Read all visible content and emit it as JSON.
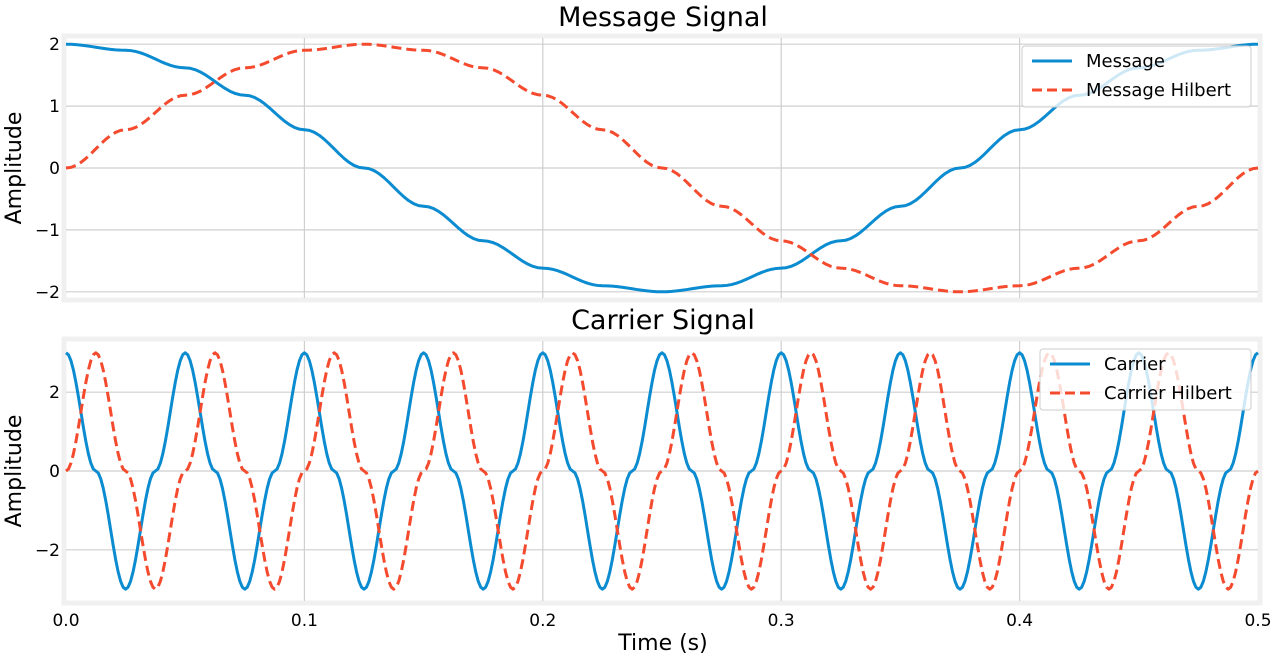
{
  "chart_data": [
    {
      "type": "line",
      "title": "Message Signal",
      "xlabel": "",
      "ylabel": "Amplitude",
      "xlim": [
        0,
        0.5
      ],
      "ylim": [
        -2.1,
        2.1
      ],
      "xticks": [
        0.1,
        0.2,
        0.3,
        0.4
      ],
      "yticks": [
        -2,
        -1,
        0,
        1,
        2
      ],
      "ytick_labels": [
        "−2",
        "−1",
        "0",
        "1",
        "2"
      ],
      "grid": true,
      "legend_position": "top-right",
      "series": [
        {
          "name": "Message",
          "style": "solid",
          "color": "#0b8bd0",
          "x": [
            0,
            0.025,
            0.05,
            0.075,
            0.1,
            0.125,
            0.15,
            0.175,
            0.2,
            0.225,
            0.25,
            0.275,
            0.3,
            0.325,
            0.35,
            0.375,
            0.4,
            0.425,
            0.45,
            0.475,
            0.5
          ],
          "y": [
            2.0,
            1.902,
            1.618,
            1.176,
            0.618,
            0.0,
            -0.618,
            -1.176,
            -1.618,
            -1.902,
            -2.0,
            -1.902,
            -1.618,
            -1.176,
            -0.618,
            0.0,
            0.618,
            1.176,
            1.618,
            1.902,
            2.0
          ]
        },
        {
          "name": "Message Hilbert",
          "style": "dashed",
          "color": "#f44a2e",
          "x": [
            0,
            0.025,
            0.05,
            0.075,
            0.1,
            0.125,
            0.15,
            0.175,
            0.2,
            0.225,
            0.25,
            0.275,
            0.3,
            0.325,
            0.35,
            0.375,
            0.4,
            0.425,
            0.45,
            0.475,
            0.5
          ],
          "y": [
            0.0,
            0.618,
            1.176,
            1.618,
            1.902,
            2.0,
            1.902,
            1.618,
            1.176,
            0.618,
            0.0,
            -0.618,
            -1.176,
            -1.618,
            -1.902,
            -2.0,
            -1.902,
            -1.618,
            -1.176,
            -0.618,
            0.0
          ]
        }
      ]
    },
    {
      "type": "line",
      "title": "Carrier Signal",
      "xlabel": "Time (s)",
      "ylabel": "Amplitude",
      "xlim": [
        0,
        0.5
      ],
      "ylim": [
        -3.3,
        3.3
      ],
      "xticks": [
        0.0,
        0.1,
        0.2,
        0.3,
        0.4,
        0.5
      ],
      "xtick_labels": [
        "0.0",
        "0.1",
        "0.2",
        "0.3",
        "0.4",
        "0.5"
      ],
      "yticks": [
        -2,
        0,
        2
      ],
      "ytick_labels": [
        "−2",
        "0",
        "2"
      ],
      "grid": true,
      "legend_position": "top-right",
      "series": [
        {
          "name": "Carrier",
          "style": "solid",
          "color": "#0b8bd0",
          "x": [
            0,
            0.0125,
            0.025,
            0.0375,
            0.05,
            0.0625,
            0.075,
            0.0875,
            0.1,
            0.1125,
            0.125,
            0.1375,
            0.15,
            0.1625,
            0.175,
            0.1875,
            0.2,
            0.2125,
            0.225,
            0.2375,
            0.25,
            0.2625,
            0.275,
            0.2875,
            0.3,
            0.3125,
            0.325,
            0.3375,
            0.35,
            0.3625,
            0.375,
            0.3875,
            0.4,
            0.4125,
            0.425,
            0.4375,
            0.45,
            0.4625,
            0.475,
            0.4875,
            0.5
          ],
          "y": [
            3,
            0,
            -3,
            0,
            3,
            0,
            -3,
            0,
            3,
            0,
            -3,
            0,
            3,
            0,
            -3,
            0,
            3,
            0,
            -3,
            0,
            3,
            0,
            -3,
            0,
            3,
            0,
            -3,
            0,
            3,
            0,
            -3,
            0,
            3,
            0,
            -3,
            0,
            3,
            0,
            -3,
            0,
            3
          ]
        },
        {
          "name": "Carrier Hilbert",
          "style": "dashed",
          "color": "#f44a2e",
          "x": [
            0,
            0.0125,
            0.025,
            0.0375,
            0.05,
            0.0625,
            0.075,
            0.0875,
            0.1,
            0.1125,
            0.125,
            0.1375,
            0.15,
            0.1625,
            0.175,
            0.1875,
            0.2,
            0.2125,
            0.225,
            0.2375,
            0.25,
            0.2625,
            0.275,
            0.2875,
            0.3,
            0.3125,
            0.325,
            0.3375,
            0.35,
            0.3625,
            0.375,
            0.3875,
            0.4,
            0.4125,
            0.425,
            0.4375,
            0.45,
            0.4625,
            0.475,
            0.4875,
            0.5
          ],
          "y": [
            0,
            3,
            0,
            -3,
            0,
            3,
            0,
            -3,
            0,
            3,
            0,
            -3,
            0,
            3,
            0,
            -3,
            0,
            3,
            0,
            -3,
            0,
            3,
            0,
            -3,
            0,
            3,
            0,
            -3,
            0,
            3,
            0,
            -3,
            0,
            3,
            0,
            -3,
            0,
            3,
            0,
            -3,
            0
          ]
        }
      ]
    }
  ]
}
